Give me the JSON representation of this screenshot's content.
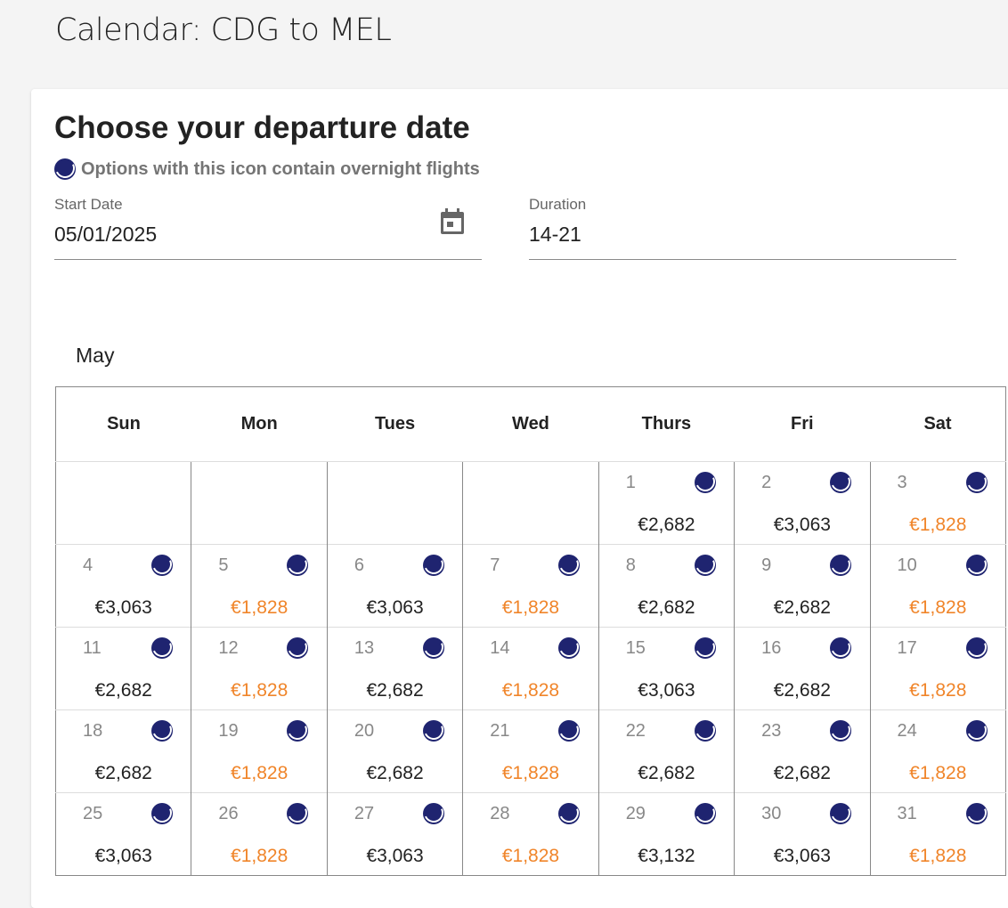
{
  "page_title": "Calendar: CDG to MEL",
  "heading": "Choose your departure date",
  "note": "Options with this icon contain overnight flights",
  "start_date": {
    "label": "Start Date",
    "value": "05/01/2025"
  },
  "duration": {
    "label": "Duration",
    "value": "14-21"
  },
  "month": "May",
  "weekdays": [
    "Sun",
    "Mon",
    "Tues",
    "Wed",
    "Thurs",
    "Fri",
    "Sat"
  ],
  "leading_blanks": 4,
  "colors": {
    "cheapest": "#f0852a",
    "moon": "#1f2470"
  },
  "days": [
    {
      "day": "1",
      "price": "€2,682",
      "overnight": true,
      "cheapest": false
    },
    {
      "day": "2",
      "price": "€3,063",
      "overnight": true,
      "cheapest": false
    },
    {
      "day": "3",
      "price": "€1,828",
      "overnight": true,
      "cheapest": true
    },
    {
      "day": "4",
      "price": "€3,063",
      "overnight": true,
      "cheapest": false
    },
    {
      "day": "5",
      "price": "€1,828",
      "overnight": true,
      "cheapest": true
    },
    {
      "day": "6",
      "price": "€3,063",
      "overnight": true,
      "cheapest": false
    },
    {
      "day": "7",
      "price": "€1,828",
      "overnight": true,
      "cheapest": true
    },
    {
      "day": "8",
      "price": "€2,682",
      "overnight": true,
      "cheapest": false
    },
    {
      "day": "9",
      "price": "€2,682",
      "overnight": true,
      "cheapest": false
    },
    {
      "day": "10",
      "price": "€1,828",
      "overnight": true,
      "cheapest": true
    },
    {
      "day": "11",
      "price": "€2,682",
      "overnight": true,
      "cheapest": false
    },
    {
      "day": "12",
      "price": "€1,828",
      "overnight": true,
      "cheapest": true
    },
    {
      "day": "13",
      "price": "€2,682",
      "overnight": true,
      "cheapest": false
    },
    {
      "day": "14",
      "price": "€1,828",
      "overnight": true,
      "cheapest": true
    },
    {
      "day": "15",
      "price": "€3,063",
      "overnight": true,
      "cheapest": false
    },
    {
      "day": "16",
      "price": "€2,682",
      "overnight": true,
      "cheapest": false
    },
    {
      "day": "17",
      "price": "€1,828",
      "overnight": true,
      "cheapest": true
    },
    {
      "day": "18",
      "price": "€2,682",
      "overnight": true,
      "cheapest": false
    },
    {
      "day": "19",
      "price": "€1,828",
      "overnight": true,
      "cheapest": true
    },
    {
      "day": "20",
      "price": "€2,682",
      "overnight": true,
      "cheapest": false
    },
    {
      "day": "21",
      "price": "€1,828",
      "overnight": true,
      "cheapest": true
    },
    {
      "day": "22",
      "price": "€2,682",
      "overnight": true,
      "cheapest": false
    },
    {
      "day": "23",
      "price": "€2,682",
      "overnight": true,
      "cheapest": false
    },
    {
      "day": "24",
      "price": "€1,828",
      "overnight": true,
      "cheapest": true
    },
    {
      "day": "25",
      "price": "€3,063",
      "overnight": true,
      "cheapest": false
    },
    {
      "day": "26",
      "price": "€1,828",
      "overnight": true,
      "cheapest": true
    },
    {
      "day": "27",
      "price": "€3,063",
      "overnight": true,
      "cheapest": false
    },
    {
      "day": "28",
      "price": "€1,828",
      "overnight": true,
      "cheapest": true
    },
    {
      "day": "29",
      "price": "€3,132",
      "overnight": true,
      "cheapest": false
    },
    {
      "day": "30",
      "price": "€3,063",
      "overnight": true,
      "cheapest": false
    },
    {
      "day": "31",
      "price": "€1,828",
      "overnight": true,
      "cheapest": true
    }
  ]
}
